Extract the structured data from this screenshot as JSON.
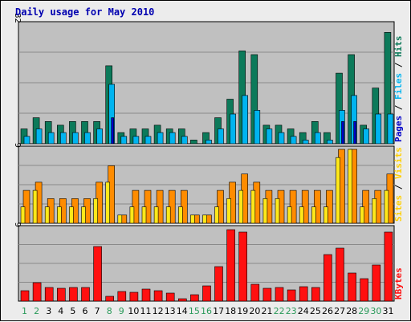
{
  "title": "Daily usage for May 2010",
  "colors": {
    "hits": "#0c7a5a",
    "files": "#00b4f0",
    "pages": "#0000c8",
    "visits": "#ff8c00",
    "sites": "#ffe81a",
    "kbytes": "#ff1010",
    "weekday": "#000000",
    "weekend": "#2a9a5a",
    "panel_bg": "#c0c0c0",
    "grid": "#8a8a8a"
  },
  "legend": {
    "top": [
      {
        "text": "Pages",
        "color": "#0000c8"
      },
      {
        "text": " / ",
        "color": "#000000"
      },
      {
        "text": "Files",
        "color": "#00b4f0"
      },
      {
        "text": " / ",
        "color": "#000000"
      },
      {
        "text": "Hits",
        "color": "#0c7a5a"
      }
    ],
    "middle": [
      {
        "text": "Sites",
        "color": "#ffd000"
      },
      {
        "text": " / ",
        "color": "#000000"
      },
      {
        "text": "Visits",
        "color": "#ffd000"
      }
    ],
    "bottom": [
      {
        "text": "KBytes",
        "color": "#ff1010"
      }
    ]
  },
  "chart_data": {
    "type": "bar",
    "title": "Daily usage for May 2010",
    "days": [
      1,
      2,
      3,
      4,
      5,
      6,
      7,
      8,
      9,
      10,
      11,
      12,
      13,
      14,
      15,
      16,
      17,
      18,
      19,
      20,
      21,
      22,
      23,
      24,
      25,
      26,
      27,
      28,
      29,
      30,
      31
    ],
    "weekend_days": [
      1,
      2,
      8,
      9,
      15,
      16,
      22,
      23,
      29,
      30
    ],
    "panels": [
      {
        "name": "pages-files-hits",
        "max_label": "32",
        "ymax": 32,
        "series": [
          {
            "name": "Hits",
            "values": [
              4,
              7,
              6,
              5,
              6,
              6,
              6,
              21,
              3,
              4,
              4,
              5,
              4,
              4,
              1,
              3,
              7,
              12,
              25,
              24,
              5,
              5,
              4,
              3,
              6,
              3,
              19,
              24,
              5,
              15,
              30
            ]
          },
          {
            "name": "Files",
            "values": [
              2,
              4,
              3,
              3,
              3,
              3,
              4,
              16,
              2,
              2,
              2,
              3,
              3,
              2,
              0,
              1,
              4,
              8,
              13,
              9,
              4,
              3,
              2,
              1,
              3,
              1,
              9,
              13,
              4,
              8,
              8
            ]
          },
          {
            "name": "Pages",
            "values": [
              0,
              0,
              0,
              0,
              0,
              0,
              0,
              7,
              0,
              0,
              0,
              0,
              0,
              0,
              0,
              0,
              0,
              0,
              0,
              0,
              0,
              0,
              0,
              0,
              0,
              0,
              6,
              6,
              0,
              0,
              0
            ]
          }
        ]
      },
      {
        "name": "sites-visits",
        "max_label": "9",
        "ymax": 9,
        "series": [
          {
            "name": "Visits",
            "values": [
              4,
              5,
              3,
              3,
              3,
              3,
              5,
              7,
              1,
              4,
              4,
              4,
              4,
              4,
              1,
              1,
              4,
              5,
              6,
              5,
              4,
              4,
              4,
              4,
              4,
              4,
              9,
              9,
              4,
              4,
              6
            ]
          },
          {
            "name": "Sites",
            "values": [
              2,
              4,
              2,
              2,
              2,
              2,
              3,
              5,
              1,
              2,
              2,
              2,
              2,
              2,
              1,
              1,
              2,
              3,
              4,
              4,
              3,
              3,
              2,
              2,
              2,
              2,
              8,
              9,
              2,
              3,
              4
            ]
          }
        ]
      },
      {
        "name": "kbytes",
        "max_label": "9",
        "ymax": 9,
        "series": [
          {
            "name": "KBytes",
            "values": [
              1.3,
              2.3,
              1.7,
              1.6,
              1.7,
              1.7,
              6.8,
              0.6,
              1.2,
              1.1,
              1.5,
              1.3,
              1.0,
              0.3,
              0.8,
              1.9,
              4.3,
              8.9,
              8.6,
              2.1,
              1.6,
              1.7,
              1.4,
              1.8,
              1.7,
              5.8,
              6.6,
              3.5,
              2.8,
              4.5,
              8.6
            ]
          }
        ]
      }
    ]
  }
}
